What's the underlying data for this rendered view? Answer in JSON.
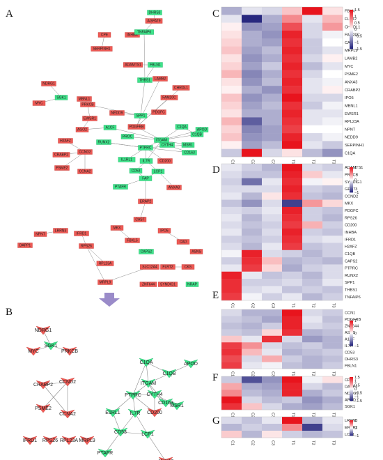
{
  "colors": {
    "up_node": "#ee5a55",
    "down_node": "#3ee38a",
    "edge": "#8a8a8a",
    "high": "#e8141d",
    "mid": "#ffffff",
    "low": "#101071",
    "arrow": "#9a8bc9"
  },
  "panels": {
    "A": "A",
    "B": "B",
    "C": "C",
    "D": "D",
    "E": "E",
    "F": "F",
    "G": "G"
  },
  "network_a": {
    "nodes": [
      {
        "label": "DHRS3",
        "color": "down"
      },
      {
        "label": "AGPAT9",
        "color": "up"
      },
      {
        "label": "CPE",
        "color": "up"
      },
      {
        "label": "INHBA",
        "color": "up"
      },
      {
        "label": "TNFAIP6",
        "color": "down"
      },
      {
        "label": "SERPINH1",
        "color": "up"
      },
      {
        "label": "ADAMTS1",
        "color": "up"
      },
      {
        "label": "FBLN1",
        "color": "down"
      },
      {
        "label": "THBS1",
        "color": "down"
      },
      {
        "label": "LAMB2",
        "color": "up"
      },
      {
        "label": "CHRDL1",
        "color": "up"
      },
      {
        "label": "NDRG1",
        "color": "up"
      },
      {
        "label": "FAM20C",
        "color": "up"
      },
      {
        "label": "SGK1",
        "color": "down"
      },
      {
        "label": "MBNL1",
        "color": "up"
      },
      {
        "label": "MYC",
        "color": "up"
      },
      {
        "label": "PRKCB",
        "color": "up"
      },
      {
        "label": "NEDD9",
        "color": "up"
      },
      {
        "label": "SPP1",
        "color": "down"
      },
      {
        "label": "PDGFC",
        "color": "up"
      },
      {
        "label": "EWSR1",
        "color": "up"
      },
      {
        "label": "PDGFRB",
        "color": "up"
      },
      {
        "label": "AGO2",
        "color": "up"
      },
      {
        "label": "A1CF",
        "color": "down"
      },
      {
        "label": "C1QA",
        "color": "down"
      },
      {
        "label": "C1QB",
        "color": "down"
      },
      {
        "label": "APOD",
        "color": "down"
      },
      {
        "label": "PROC",
        "color": "down"
      },
      {
        "label": "ITGAM",
        "color": "down"
      },
      {
        "label": "MSR1",
        "color": "down"
      },
      {
        "label": "H2AFZ",
        "color": "up"
      },
      {
        "label": "RUNX2",
        "color": "down"
      },
      {
        "label": "PTPRC",
        "color": "down"
      },
      {
        "label": "CYTH4",
        "color": "down"
      },
      {
        "label": "CCND2",
        "color": "up"
      },
      {
        "label": "CD163",
        "color": "down"
      },
      {
        "label": "CRABP2",
        "color": "up"
      },
      {
        "label": "IL1RL1",
        "color": "down"
      },
      {
        "label": "IL7R",
        "color": "down"
      },
      {
        "label": "CD200",
        "color": "up"
      },
      {
        "label": "PSME2",
        "color": "up"
      },
      {
        "label": "CCNA2",
        "color": "up"
      },
      {
        "label": "CD53",
        "color": "down"
      },
      {
        "label": "LCP1",
        "color": "down"
      },
      {
        "label": "FAP",
        "color": "down"
      },
      {
        "label": "PTAFR",
        "color": "down"
      },
      {
        "label": "ANXA3",
        "color": "up"
      },
      {
        "label": "ERAP2",
        "color": "up"
      },
      {
        "label": "CAST",
        "color": "up"
      },
      {
        "label": "LRRN3",
        "color": "up"
      },
      {
        "label": "NPNT",
        "color": "up"
      },
      {
        "label": "IFRD1",
        "color": "up"
      },
      {
        "label": "MKX",
        "color": "up"
      },
      {
        "label": "IPO5",
        "color": "up"
      },
      {
        "label": "DAPP1",
        "color": "up"
      },
      {
        "label": "FBXL5",
        "color": "up"
      },
      {
        "label": "CAD",
        "color": "up"
      },
      {
        "label": "RPS26",
        "color": "up"
      },
      {
        "label": "ASNS",
        "color": "up"
      },
      {
        "label": "CAPS2",
        "color": "down"
      },
      {
        "label": "RPL23A",
        "color": "up"
      },
      {
        "label": "SLC12A4",
        "color": "up"
      },
      {
        "label": "FLRT2",
        "color": "up"
      },
      {
        "label": "CKS",
        "color": "up"
      },
      {
        "label": "MRPL9",
        "color": "up"
      },
      {
        "label": "ZNF644",
        "color": "up"
      },
      {
        "label": "SYNDIG1",
        "color": "up"
      },
      {
        "label": "NRAP",
        "color": "down"
      }
    ]
  },
  "network_b": {
    "nodes": [
      {
        "label": "NDRG1",
        "color": "up"
      },
      {
        "label": "MYC",
        "color": "up"
      },
      {
        "label": "SGK1",
        "color": "down"
      },
      {
        "label": "PRKCB",
        "color": "up"
      },
      {
        "label": "CRABP2",
        "color": "up"
      },
      {
        "label": "CCND2",
        "color": "up"
      },
      {
        "label": "PSME2",
        "color": "up"
      },
      {
        "label": "CCNA2",
        "color": "up"
      },
      {
        "label": "IFRD1",
        "color": "up"
      },
      {
        "label": "RPS26",
        "color": "up"
      },
      {
        "label": "RPL23A",
        "color": "up"
      },
      {
        "label": "MRPL9",
        "color": "up"
      },
      {
        "label": "C1QA",
        "color": "down"
      },
      {
        "label": "C1QB",
        "color": "down"
      },
      {
        "label": "APOD",
        "color": "down"
      },
      {
        "label": "ITGAM",
        "color": "down"
      },
      {
        "label": "CYTH4",
        "color": "down"
      },
      {
        "label": "MSR1",
        "color": "down"
      },
      {
        "label": "PTPRC",
        "color": "down"
      },
      {
        "label": "CD163",
        "color": "down"
      },
      {
        "label": "E1RL1",
        "color": "down"
      },
      {
        "label": "IL7R",
        "color": "down"
      },
      {
        "label": "CD200",
        "color": "up"
      },
      {
        "label": "CD53",
        "color": "down"
      },
      {
        "label": "LCP1",
        "color": "down"
      },
      {
        "label": "PTAFR",
        "color": "down"
      },
      {
        "label": "ANXA3",
        "color": "up"
      }
    ]
  },
  "heatmaps": {
    "columns": [
      "C1",
      "C2",
      "C3",
      "T1",
      "T2",
      "T3"
    ],
    "C": {
      "genes": [
        "FBLN",
        "FLRT2",
        "CHRDL1",
        "FAM20C",
        "CAD",
        "MRPL9",
        "LAMB2",
        "MYC",
        "PSME2",
        "ANXA3",
        "CRABP2",
        "IPO5",
        "MBNL1",
        "EWSR1",
        "RPL23A",
        "NPNT",
        "NEDD9",
        "SERPINH1",
        "C1QA"
      ],
      "values": [
        [
          -0.6,
          -0.2,
          -0.3,
          0.4,
          1.7,
          0.2
        ],
        [
          -0.2,
          -1.6,
          -0.6,
          0.8,
          -0.2,
          0.5
        ],
        [
          0.1,
          -0.8,
          -0.7,
          1.2,
          -0.3,
          0.7
        ],
        [
          0.2,
          -0.6,
          -0.8,
          1.5,
          -0.3,
          -0.1
        ],
        [
          0.3,
          -0.6,
          -0.7,
          1.4,
          -0.4,
          0.0
        ],
        [
          0.4,
          -0.7,
          -0.5,
          1.5,
          -0.4,
          -0.2
        ],
        [
          0.2,
          -0.8,
          -0.6,
          1.4,
          -0.3,
          0.1
        ],
        [
          0.3,
          -0.7,
          -0.4,
          1.5,
          -0.5,
          -0.2
        ],
        [
          0.5,
          -0.9,
          -0.6,
          1.4,
          -0.3,
          0.0
        ],
        [
          0.2,
          -0.8,
          -0.5,
          1.5,
          -0.2,
          -0.1
        ],
        [
          0.1,
          -0.6,
          -0.8,
          1.4,
          -0.2,
          0.1
        ],
        [
          0.4,
          -0.8,
          -0.6,
          1.6,
          -0.3,
          -0.3
        ],
        [
          0.3,
          -0.7,
          -0.5,
          1.4,
          -0.4,
          -0.1
        ],
        [
          0.2,
          -0.6,
          -0.6,
          1.5,
          -0.2,
          -0.2
        ],
        [
          0.5,
          -1.2,
          -0.6,
          1.4,
          -0.2,
          -0.1
        ],
        [
          0.3,
          -0.9,
          -0.7,
          1.3,
          0.0,
          0.0
        ],
        [
          0.4,
          -0.8,
          -0.7,
          1.5,
          -0.3,
          -0.1
        ],
        [
          0.1,
          -0.7,
          -0.5,
          1.6,
          -0.2,
          -0.4
        ],
        [
          -0.4,
          1.8,
          -0.3,
          0.2,
          -0.5,
          -0.8
        ]
      ],
      "colorbar": {
        "max_label": "1.5",
        "ticks": [
          "1.5",
          "1",
          "0.5",
          "0",
          "−0.5",
          "−1",
          "−1.5"
        ]
      }
    },
    "D": {
      "genes": [
        "ADAMTS1",
        "PRKCB",
        "SYNDIG1",
        "GPR73",
        "CCND2",
        "MKX",
        "PDGFC",
        "RPS26",
        "CD200",
        "INHBA",
        "IFRD1",
        "H2AFZ",
        "C1QB",
        "CAPS2",
        "PTPRC",
        "RUNX2",
        "SPP1",
        "THBS1",
        "TNFAIP6"
      ],
      "values": [
        [
          -0.2,
          -0.4,
          -0.6,
          1.8,
          -0.3,
          -0.4
        ],
        [
          -0.3,
          -0.5,
          -0.5,
          1.7,
          0.4,
          -0.2
        ],
        [
          -0.4,
          -1.2,
          -0.2,
          1.6,
          -0.1,
          0.1
        ],
        [
          -0.3,
          -0.3,
          -0.3,
          1.7,
          -0.4,
          -0.5
        ],
        [
          -0.2,
          -0.6,
          0.2,
          1.6,
          -0.5,
          -0.6
        ],
        [
          -0.5,
          -0.9,
          -0.3,
          -1.6,
          0.8,
          0.3
        ],
        [
          -0.3,
          -0.4,
          -0.2,
          1.7,
          -0.4,
          -0.5
        ],
        [
          -0.2,
          -0.6,
          -0.3,
          1.6,
          -0.4,
          -0.6
        ],
        [
          -0.3,
          -0.5,
          -0.4,
          1.5,
          0.6,
          -0.4
        ],
        [
          -0.2,
          -0.6,
          -0.3,
          1.7,
          -0.4,
          -0.5
        ],
        [
          -0.4,
          -0.5,
          -0.4,
          1.6,
          -0.3,
          -0.2
        ],
        [
          -0.3,
          -0.6,
          -0.2,
          1.5,
          -0.5,
          -0.4
        ],
        [
          -0.1,
          1.7,
          -0.3,
          -0.4,
          -0.6,
          -0.4
        ],
        [
          -0.4,
          1.6,
          0.5,
          -0.6,
          -0.5,
          -0.6
        ],
        [
          -0.2,
          1.5,
          0.3,
          -0.7,
          -0.4,
          -0.3
        ],
        [
          1.7,
          -0.2,
          -0.5,
          -0.4,
          -0.6,
          -0.3
        ],
        [
          1.6,
          -0.4,
          -0.4,
          -0.3,
          -0.5,
          -0.2
        ],
        [
          1.6,
          -0.3,
          -0.2,
          -0.5,
          -0.4,
          -0.5
        ],
        [
          1.5,
          -0.1,
          -0.4,
          -0.2,
          -0.6,
          -0.4
        ]
      ],
      "colorbar": {
        "ticks": [
          "1",
          "0",
          "−1"
        ]
      }
    },
    "E": {
      "genes": [
        "CCN1",
        "PDGFRB",
        "ZNF644",
        "ASNS",
        "A1CF",
        "IL7R",
        "CD53",
        "DHRS3",
        "FBLN1"
      ],
      "values": [
        [
          -0.3,
          -0.6,
          -0.6,
          1.7,
          -0.3,
          -0.4
        ],
        [
          -0.4,
          -0.5,
          -0.7,
          1.6,
          -0.2,
          -0.5
        ],
        [
          -0.5,
          -0.6,
          -0.4,
          1.6,
          -0.3,
          -0.4
        ],
        [
          -0.4,
          -0.5,
          0.3,
          1.5,
          -0.6,
          -0.5
        ],
        [
          0.4,
          -0.2,
          1.5,
          -0.3,
          -0.8,
          -0.6
        ],
        [
          1.4,
          0.8,
          -0.3,
          -0.5,
          -0.4,
          -0.6
        ],
        [
          1.5,
          0.5,
          -0.2,
          -0.6,
          -0.5,
          -0.4
        ],
        [
          1.3,
          -0.3,
          0.6,
          -0.4,
          -0.6,
          -0.5
        ],
        [
          1.4,
          -0.2,
          -0.1,
          -0.5,
          -0.6,
          -0.4
        ]
      ],
      "colorbar": {
        "ticks": [
          "1",
          "0",
          "−1"
        ]
      }
    },
    "F": {
      "genes": [
        "CPE",
        "DAPP1",
        "NDRG1",
        "APOD",
        "SGK1"
      ],
      "values": [
        [
          -0.4,
          -1.3,
          -0.8,
          1.6,
          -0.1,
          0.2
        ],
        [
          0.6,
          -0.6,
          -0.7,
          1.5,
          -0.3,
          -0.5
        ],
        [
          0.8,
          -0.5,
          -0.6,
          1.5,
          -0.6,
          -0.4
        ],
        [
          1.6,
          -0.3,
          -0.5,
          -0.4,
          -0.8,
          -0.6
        ],
        [
          1.4,
          0.4,
          -0.3,
          -0.6,
          -0.7,
          -0.5
        ]
      ],
      "colorbar": {
        "ticks": [
          "1.5",
          "1",
          "0.5",
          "0",
          "−0.5",
          "−1",
          "−1.5"
        ]
      }
    },
    "G": {
      "genes": [
        "LRRN3",
        "ERAP2",
        "LCP1"
      ],
      "values": [
        [
          -0.3,
          -0.5,
          -0.2,
          1.8,
          -0.6,
          -0.2
        ],
        [
          -0.6,
          -0.4,
          -0.5,
          0.9,
          -1.6,
          -0.3
        ],
        [
          0.4,
          -0.6,
          0.2,
          -0.4,
          -0.6,
          -0.5
        ]
      ],
      "colorbar": {
        "ticks": [
          "1",
          "0",
          "−1"
        ]
      }
    }
  }
}
